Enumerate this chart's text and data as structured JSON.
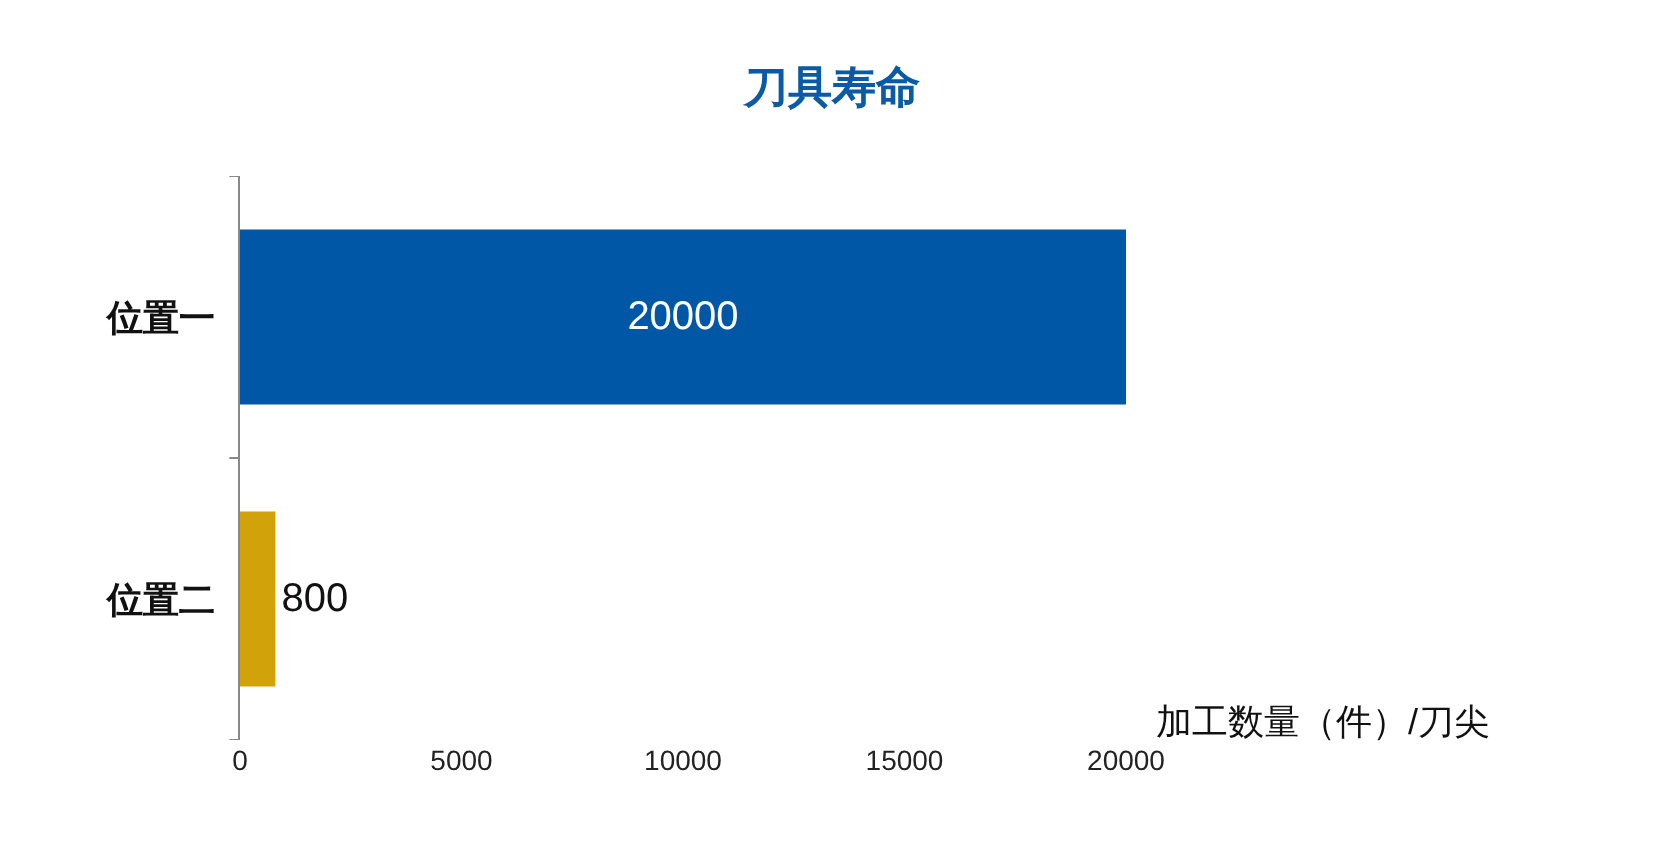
{
  "chart_data": {
    "type": "bar",
    "orientation": "horizontal",
    "title": "刀具寿命",
    "xlabel": "加工数量（件）/刀尖",
    "categories": [
      "位置一",
      "位置二"
    ],
    "values": [
      20000,
      800
    ],
    "colors": [
      "#0057a6",
      "#d1a20a"
    ],
    "xlim": [
      0,
      20000
    ],
    "xticks": [
      0,
      5000,
      10000,
      15000,
      20000
    ],
    "data_labels": true,
    "grid": false,
    "legend": false
  }
}
